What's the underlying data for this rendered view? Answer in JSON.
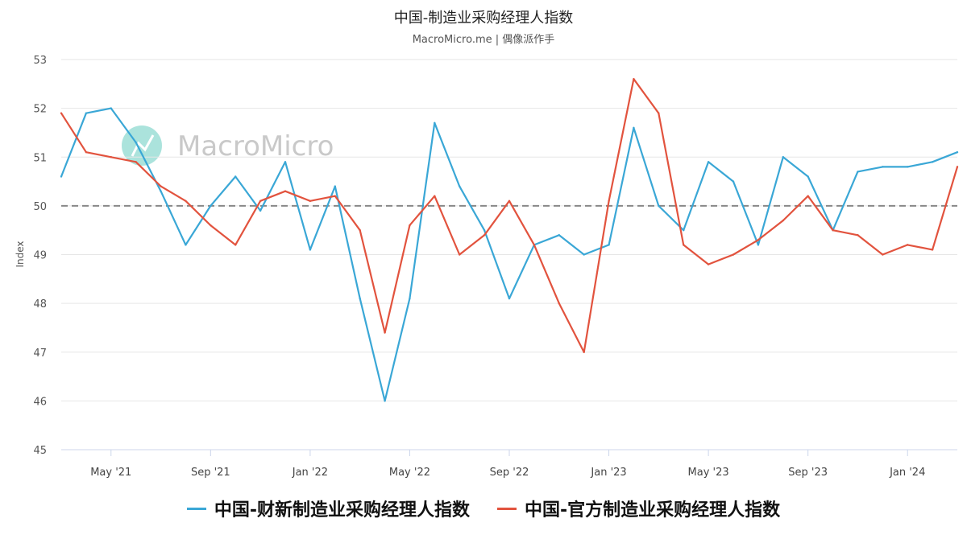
{
  "title": "中国-制造业采购经理人指数",
  "subtitle": "MacroMicro.me | 偶像派作手",
  "watermark": "MacroMicro",
  "colors": {
    "caixin": "#3aa7d6",
    "official": "#e2533e",
    "reference": "#888888",
    "watermark_icon": "#8fd9d0",
    "watermark_text": "#c9c9c9"
  },
  "chart_data": {
    "type": "line",
    "ylabel": "Index",
    "ylim": [
      45,
      53
    ],
    "yticks": [
      "45",
      "46",
      "47",
      "48",
      "49",
      "50",
      "51",
      "52",
      "53"
    ],
    "reference_line": 50,
    "x": [
      "2021-03",
      "2021-04",
      "2021-05",
      "2021-06",
      "2021-07",
      "2021-08",
      "2021-09",
      "2021-10",
      "2021-11",
      "2021-12",
      "2022-01",
      "2022-02",
      "2022-03",
      "2022-04",
      "2022-05",
      "2022-06",
      "2022-07",
      "2022-08",
      "2022-09",
      "2022-10",
      "2022-11",
      "2022-12",
      "2023-01",
      "2023-02",
      "2023-03",
      "2023-04",
      "2023-05",
      "2023-06",
      "2023-07",
      "2023-08",
      "2023-09",
      "2023-10",
      "2023-11",
      "2023-12",
      "2024-01",
      "2024-02",
      "2024-03"
    ],
    "xtick_labels": [
      {
        "month": "2021-05",
        "label": "May '21"
      },
      {
        "month": "2021-09",
        "label": "Sep '21"
      },
      {
        "month": "2022-01",
        "label": "Jan '22"
      },
      {
        "month": "2022-05",
        "label": "May '22"
      },
      {
        "month": "2022-09",
        "label": "Sep '22"
      },
      {
        "month": "2023-01",
        "label": "Jan '23"
      },
      {
        "month": "2023-05",
        "label": "May '23"
      },
      {
        "month": "2023-09",
        "label": "Sep '23"
      },
      {
        "month": "2024-01",
        "label": "Jan '24"
      }
    ],
    "series": [
      {
        "name": "中国-财新制造业采购经理人指数",
        "color_key": "caixin",
        "values": [
          50.6,
          51.9,
          52.0,
          51.3,
          50.3,
          49.2,
          50.0,
          50.6,
          49.9,
          50.9,
          49.1,
          50.4,
          48.1,
          46.0,
          48.1,
          51.7,
          50.4,
          49.5,
          48.1,
          49.2,
          49.4,
          49.0,
          49.2,
          51.6,
          50.0,
          49.5,
          50.9,
          50.5,
          49.2,
          51.0,
          50.6,
          49.5,
          50.7,
          50.8,
          50.8,
          50.9,
          51.1
        ]
      },
      {
        "name": "中国-官方制造业采购经理人指数",
        "color_key": "official",
        "values": [
          51.9,
          51.1,
          51.0,
          50.9,
          50.4,
          50.1,
          49.6,
          49.2,
          50.1,
          50.3,
          50.1,
          50.2,
          49.5,
          47.4,
          49.6,
          50.2,
          49.0,
          49.4,
          50.1,
          49.2,
          48.0,
          47.0,
          50.1,
          52.6,
          51.9,
          49.2,
          48.8,
          49.0,
          49.3,
          49.7,
          50.2,
          49.5,
          49.4,
          49.0,
          49.2,
          49.1,
          50.8
        ]
      }
    ],
    "grid": "horizontal",
    "legend_position": "bottom"
  }
}
